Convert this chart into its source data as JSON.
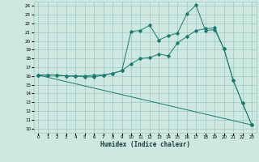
{
  "title": "",
  "xlabel": "Humidex (Indice chaleur)",
  "ylabel": "",
  "bg_color": "#cce8e0",
  "grid_color": "#a0c8c0",
  "line_color": "#1a7a6e",
  "xlim": [
    -0.5,
    23.5
  ],
  "ylim": [
    9.5,
    24.5
  ],
  "xticks": [
    0,
    1,
    2,
    3,
    4,
    5,
    6,
    7,
    8,
    9,
    10,
    11,
    12,
    13,
    14,
    15,
    16,
    17,
    18,
    19,
    20,
    21,
    22,
    23
  ],
  "yticks": [
    10,
    11,
    12,
    13,
    14,
    15,
    16,
    17,
    18,
    19,
    20,
    21,
    22,
    23,
    24
  ],
  "line1_x": [
    0,
    1,
    2,
    3,
    4,
    5,
    6,
    7,
    8,
    9,
    10,
    11,
    12,
    13,
    14,
    15,
    16,
    17,
    18,
    19,
    20,
    21,
    22,
    23
  ],
  "line1_y": [
    16.1,
    16.1,
    16.1,
    16.0,
    16.0,
    16.0,
    16.1,
    16.1,
    16.3,
    16.6,
    21.1,
    21.2,
    21.8,
    20.1,
    20.6,
    20.9,
    23.1,
    24.1,
    21.2,
    21.3,
    19.1,
    15.5,
    12.9,
    10.4
  ],
  "line2_x": [
    0,
    1,
    2,
    3,
    4,
    5,
    6,
    7,
    8,
    9,
    10,
    11,
    12,
    13,
    14,
    15,
    16,
    17,
    18,
    19,
    20,
    21,
    22,
    23
  ],
  "line2_y": [
    16.1,
    16.1,
    16.1,
    16.0,
    16.0,
    15.9,
    15.9,
    16.1,
    16.3,
    16.6,
    17.4,
    18.0,
    18.1,
    18.5,
    18.3,
    19.8,
    20.5,
    21.2,
    21.4,
    21.5,
    19.1,
    15.5,
    12.9,
    10.4
  ],
  "line3_x": [
    0,
    23
  ],
  "line3_y": [
    16.1,
    10.4
  ]
}
